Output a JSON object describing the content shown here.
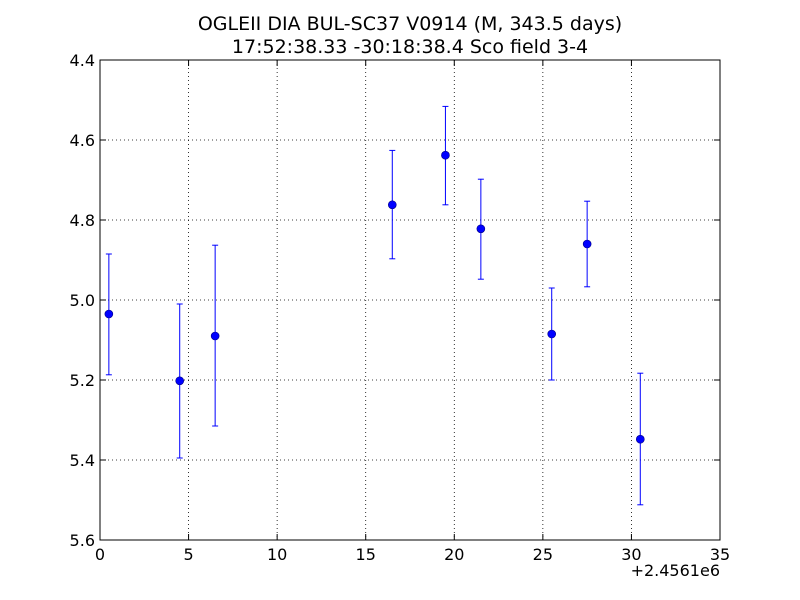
{
  "chart_data": {
    "type": "scatter",
    "title_lines": [
      "OGLEII DIA BUL-SC37 V0914  (M, 343.5 days)",
      "17:52:38.33 -30:18:38.4 Sco field 3-4"
    ],
    "xlim": [
      0,
      35
    ],
    "ylim": [
      4.4,
      5.6
    ],
    "y_inverted": true,
    "x_ticks": [
      0,
      5,
      10,
      15,
      20,
      25,
      30,
      35
    ],
    "x_tick_labels": [
      "0",
      "5",
      "10",
      "15",
      "20",
      "25",
      "30",
      "35"
    ],
    "y_ticks": [
      4.4,
      4.6,
      4.8,
      5.0,
      5.2,
      5.4,
      5.6
    ],
    "y_tick_labels": [
      "4.4",
      "4.6",
      "4.8",
      "5.0",
      "5.2",
      "5.4",
      "5.6"
    ],
    "x_offset_label": "+2.4561e6",
    "grid": true,
    "marker_color": "#0000ff",
    "points": [
      {
        "x": 0.5,
        "y": 5.035,
        "yerr_low": 5.187,
        "yerr_high": 4.885
      },
      {
        "x": 4.5,
        "y": 5.202,
        "yerr_low": 5.395,
        "yerr_high": 5.01
      },
      {
        "x": 6.5,
        "y": 5.09,
        "yerr_low": 5.315,
        "yerr_high": 4.863
      },
      {
        "x": 16.5,
        "y": 4.762,
        "yerr_low": 4.897,
        "yerr_high": 4.626
      },
      {
        "x": 19.5,
        "y": 4.638,
        "yerr_low": 4.762,
        "yerr_high": 4.516
      },
      {
        "x": 21.5,
        "y": 4.822,
        "yerr_low": 4.948,
        "yerr_high": 4.698
      },
      {
        "x": 25.5,
        "y": 5.085,
        "yerr_low": 5.2,
        "yerr_high": 4.97
      },
      {
        "x": 27.5,
        "y": 4.86,
        "yerr_low": 4.967,
        "yerr_high": 4.753
      },
      {
        "x": 30.5,
        "y": 5.348,
        "yerr_low": 5.512,
        "yerr_high": 5.183
      }
    ]
  }
}
